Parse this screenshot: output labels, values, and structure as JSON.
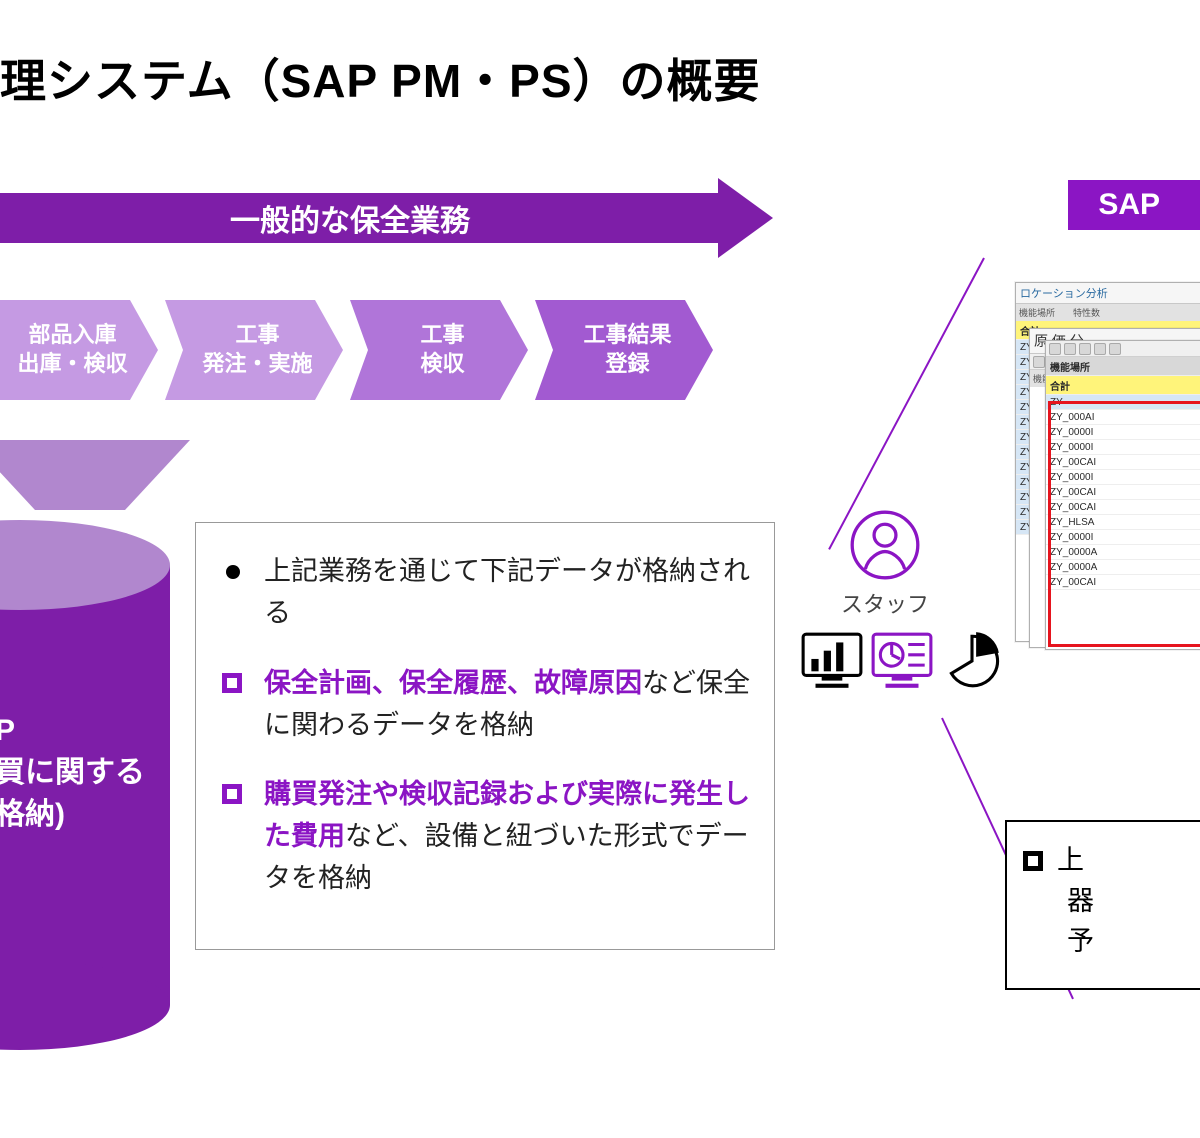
{
  "colors": {
    "purple_dark": "#7e1ea8",
    "purple_brand": "#8b15c4",
    "purple_light": "#b187ce",
    "step_light": "#c59ae3",
    "step_mid": "#b075d9",
    "step_dark": "#a25ad1",
    "white": "#ffffff",
    "black": "#000000",
    "red_frame": "#e6141e",
    "yellow_row": "#fff47a",
    "sel_row": "#d6e6f5"
  },
  "title": "理システム（SAP PM・PS）の概要",
  "sap_badge": "SAP",
  "arrow_header": "一般的な保全業務",
  "steps": [
    {
      "line1": "部品入庫",
      "line2": "出庫・検収",
      "color": "#c59ae3"
    },
    {
      "line1": "工事",
      "line2": "発注・実施",
      "color": "#c59ae3"
    },
    {
      "line1": "工事",
      "line2": "検収",
      "color": "#b075d9"
    },
    {
      "line1": "工事結果",
      "line2": "登録",
      "color": "#a25ad1"
    }
  ],
  "cylinder": {
    "line1": "P",
    "line2": "買に関する",
    "line3": "格納)"
  },
  "description": {
    "bullet1": "上記業務を通じて下記データが格納される",
    "bullet2_hl": "保全計画、保全履歴、故障原因",
    "bullet2_rest": "など保全に関わるデータを格納",
    "bullet3_hl": "購買発注や検収記録および実際に発生した費用",
    "bullet3_rest": "など、設備と紐づいた形式でデータを格納"
  },
  "staff_label": "スタッフ",
  "screens": {
    "back_title": "ロケーション分析",
    "back_header": "機能場所　　特性数",
    "mid_title": "原 価 分",
    "front_header": "機能場所",
    "front_rows": [
      {
        "text": "機能場所",
        "style": "hdr"
      },
      {
        "text": "合計",
        "style": "y"
      },
      {
        "text": "ZY",
        "style": "sel"
      },
      {
        "text": "ZY_000AI",
        "style": ""
      },
      {
        "text": "ZY_0000I",
        "style": ""
      },
      {
        "text": "ZY_0000I",
        "style": ""
      },
      {
        "text": "ZY_00CAI",
        "style": ""
      },
      {
        "text": "ZY_0000I",
        "style": ""
      },
      {
        "text": "ZY_00CAI",
        "style": ""
      },
      {
        "text": "ZY_00CAI",
        "style": ""
      },
      {
        "text": "ZY_HLSA",
        "style": ""
      },
      {
        "text": "ZY_0000I",
        "style": ""
      },
      {
        "text": "ZY_0000A",
        "style": ""
      },
      {
        "text": "ZY_0000A",
        "style": ""
      },
      {
        "text": "ZY_00CAI",
        "style": ""
      }
    ],
    "back_rows_count": 14
  },
  "bottom_box": {
    "line1": "上",
    "line2": "器",
    "line3": "予"
  }
}
